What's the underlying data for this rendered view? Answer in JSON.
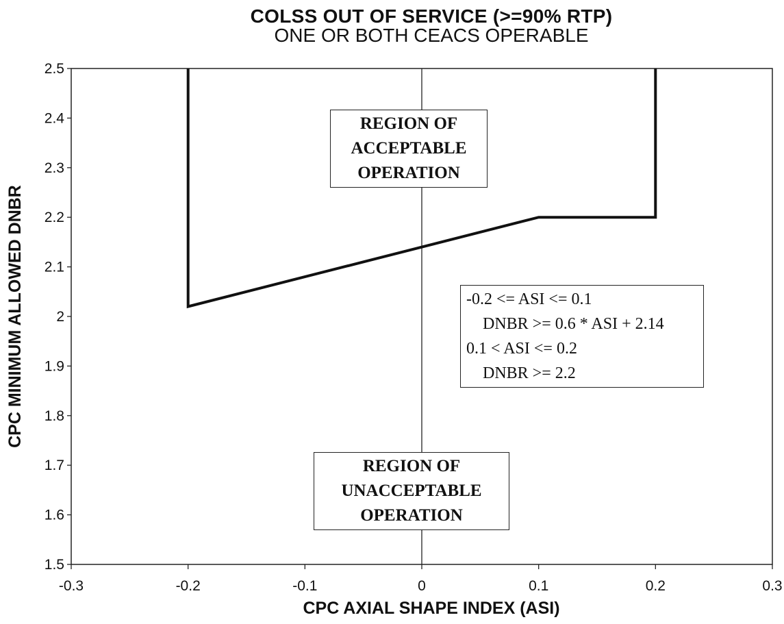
{
  "chart_data": {
    "type": "line",
    "title": "COLSS OUT OF SERVICE (>=90% RTP)",
    "subtitle": "ONE OR BOTH CEACS OPERABLE",
    "xlabel": "CPC AXIAL SHAPE INDEX (ASI)",
    "ylabel": "CPC MINIMUM ALLOWED DNBR",
    "xlim": [
      -0.3,
      0.3
    ],
    "ylim": [
      1.5,
      2.5
    ],
    "xticks": [
      -0.3,
      -0.2,
      -0.1,
      0,
      0.1,
      0.2,
      0.3
    ],
    "xtick_labels": [
      "-0.3",
      "-0.2",
      "-0.1",
      "0",
      "0.1",
      "0.2",
      "0.3"
    ],
    "yticks": [
      1.5,
      1.6,
      1.7,
      1.8,
      1.9,
      2.0,
      2.1,
      2.2,
      2.3,
      2.4,
      2.5
    ],
    "ytick_labels": [
      "1.5",
      "1.6",
      "1.7",
      "1.8",
      "1.9",
      "2",
      "2.1",
      "2.2",
      "2.3",
      "2.4",
      "2.5"
    ],
    "zero_line_x": 0,
    "grid": false,
    "series": [
      {
        "x": [
          -0.2,
          -0.2,
          0.1,
          0.2,
          0.2
        ],
        "y": [
          2.5,
          2.02,
          2.2,
          2.2,
          2.5
        ]
      }
    ],
    "annotations": {
      "acceptable_region": [
        "REGION OF",
        "ACCEPTABLE",
        "OPERATION"
      ],
      "unacceptable_region": [
        "REGION OF",
        "UNACCEPTABLE",
        "OPERATION"
      ],
      "equations": [
        "-0.2 <= ASI <= 0.1",
        "DNBR >= 0.6 * ASI + 2.14",
        "0.1 < ASI <= 0.2",
        "DNBR >= 2.2"
      ]
    },
    "colors": {
      "line": "#111111",
      "axis": "#222222",
      "background": "#ffffff"
    }
  }
}
